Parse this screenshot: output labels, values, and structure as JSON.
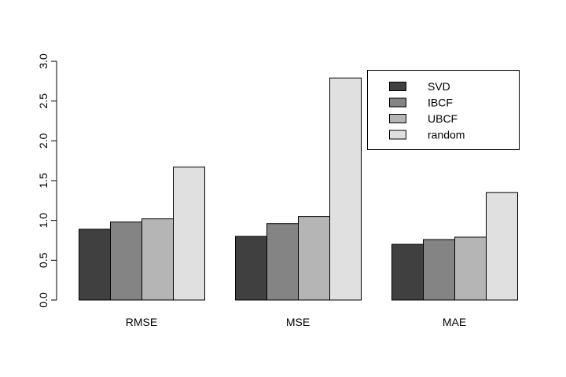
{
  "chart_data": {
    "type": "bar",
    "layout": "grouped",
    "categories": [
      "RMSE",
      "MSE",
      "MAE"
    ],
    "series": [
      {
        "name": "SVD",
        "color": "#404040",
        "values": [
          0.89,
          0.8,
          0.7
        ]
      },
      {
        "name": "IBCF",
        "color": "#848484",
        "values": [
          0.98,
          0.96,
          0.76
        ]
      },
      {
        "name": "UBCF",
        "color": "#b5b5b5",
        "values": [
          1.02,
          1.05,
          0.79
        ]
      },
      {
        "name": "random",
        "color": "#e0e0e0",
        "values": [
          1.67,
          2.79,
          1.35
        ]
      }
    ],
    "title": "",
    "xlabel": "",
    "ylabel": "",
    "ylim": [
      0,
      3.0
    ],
    "yticks": [
      "0.0",
      "0.5",
      "1.0",
      "1.5",
      "2.0",
      "2.5",
      "3.0"
    ],
    "grid": false,
    "legend_position": "top-right"
  }
}
